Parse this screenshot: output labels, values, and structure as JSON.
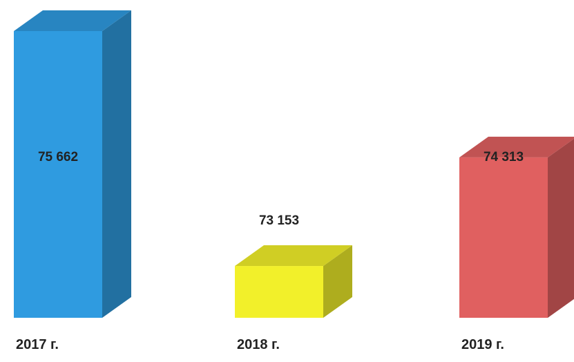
{
  "chart_data": {
    "type": "bar",
    "style": "3d-column",
    "categories": [
      "2017 г.",
      "2018 г.",
      "2019 г."
    ],
    "values": [
      75662,
      73153,
      74313
    ],
    "value_labels": [
      "75 662",
      "73 153",
      "74 313"
    ],
    "colors": [
      "#2f9be0",
      "#f2f02a",
      "#e06060"
    ],
    "title": "",
    "xlabel": "",
    "ylabel": "",
    "grid": false,
    "legend": "none"
  }
}
